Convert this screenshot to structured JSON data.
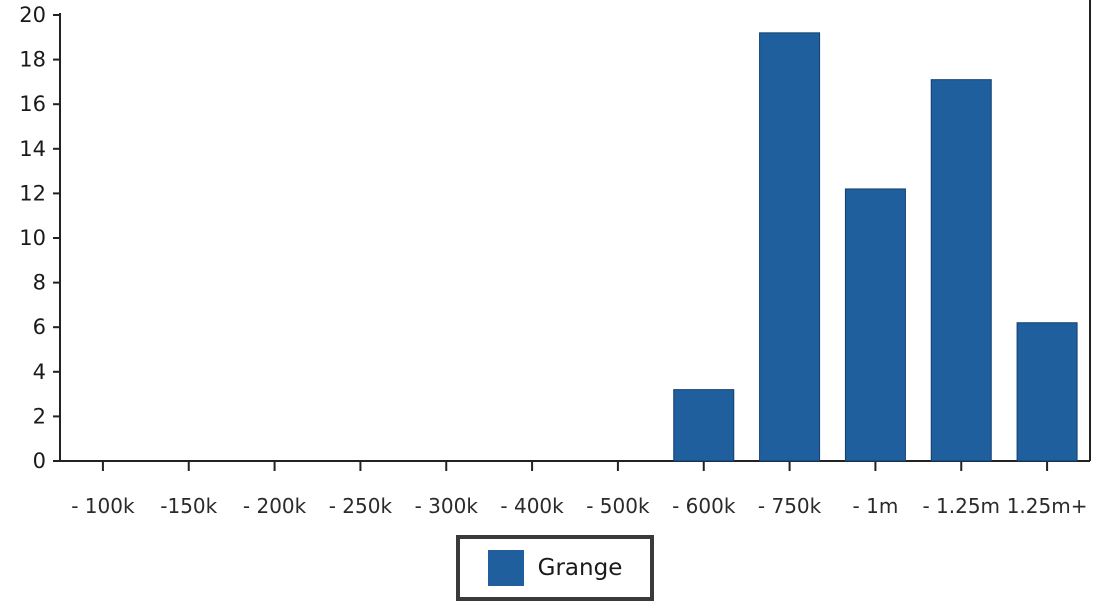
{
  "chart_data": {
    "type": "bar",
    "categories": [
      "- 100k",
      "-150k",
      "- 200k",
      "- 250k",
      "- 300k",
      "- 400k",
      "- 500k",
      "- 600k",
      "- 750k",
      "- 1m",
      "- 1.25m",
      "1.25m+"
    ],
    "series": [
      {
        "name": "Grange",
        "values": [
          0,
          0,
          0,
          0,
          0,
          0,
          0,
          3.2,
          19.2,
          12.2,
          17.1,
          6.2
        ],
        "color": "#1f5f9e"
      }
    ],
    "ylim": [
      0,
      20
    ],
    "yticks": [
      0,
      2,
      4,
      6,
      8,
      10,
      12,
      14,
      16,
      18,
      20
    ],
    "grid": false,
    "legend_position": "bottom-center"
  }
}
